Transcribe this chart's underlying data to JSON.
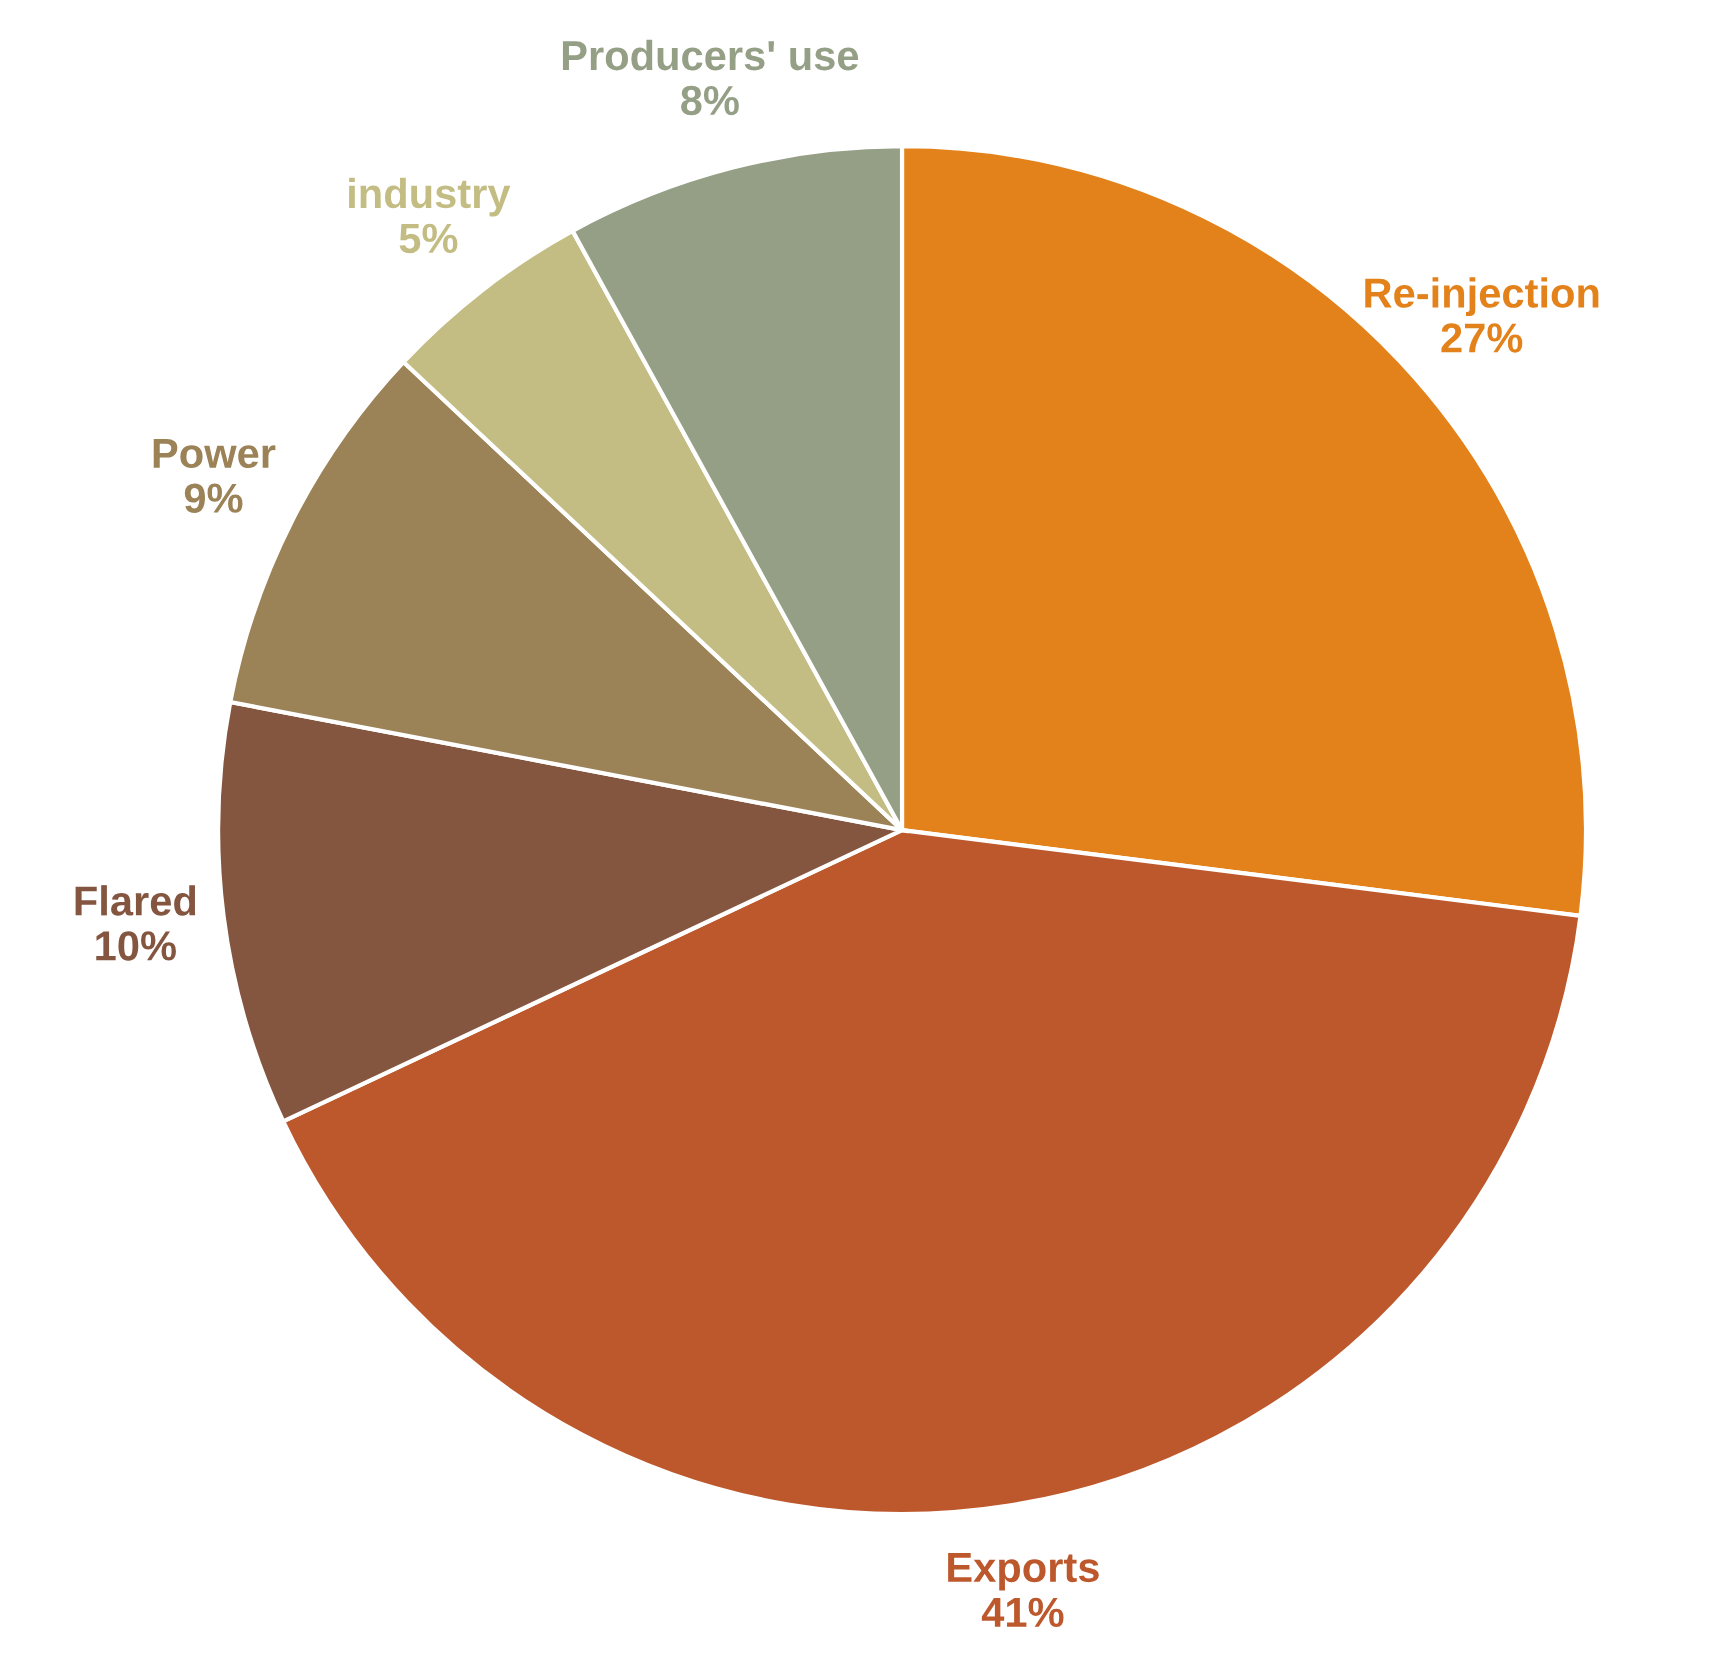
{
  "chart_data": {
    "type": "pie",
    "categories": [
      "Re-injection",
      "Exports",
      "Flared",
      "Power",
      "industry",
      "Producers' use"
    ],
    "values": [
      27,
      41,
      10,
      9,
      5,
      8
    ],
    "value_labels": [
      "27%",
      "41%",
      "10%",
      "9%",
      "5%",
      "8%"
    ],
    "colors": [
      "#e3821a",
      "#bd582c",
      "#84553f",
      "#9b8257",
      "#c3bd84",
      "#949f86"
    ]
  }
}
